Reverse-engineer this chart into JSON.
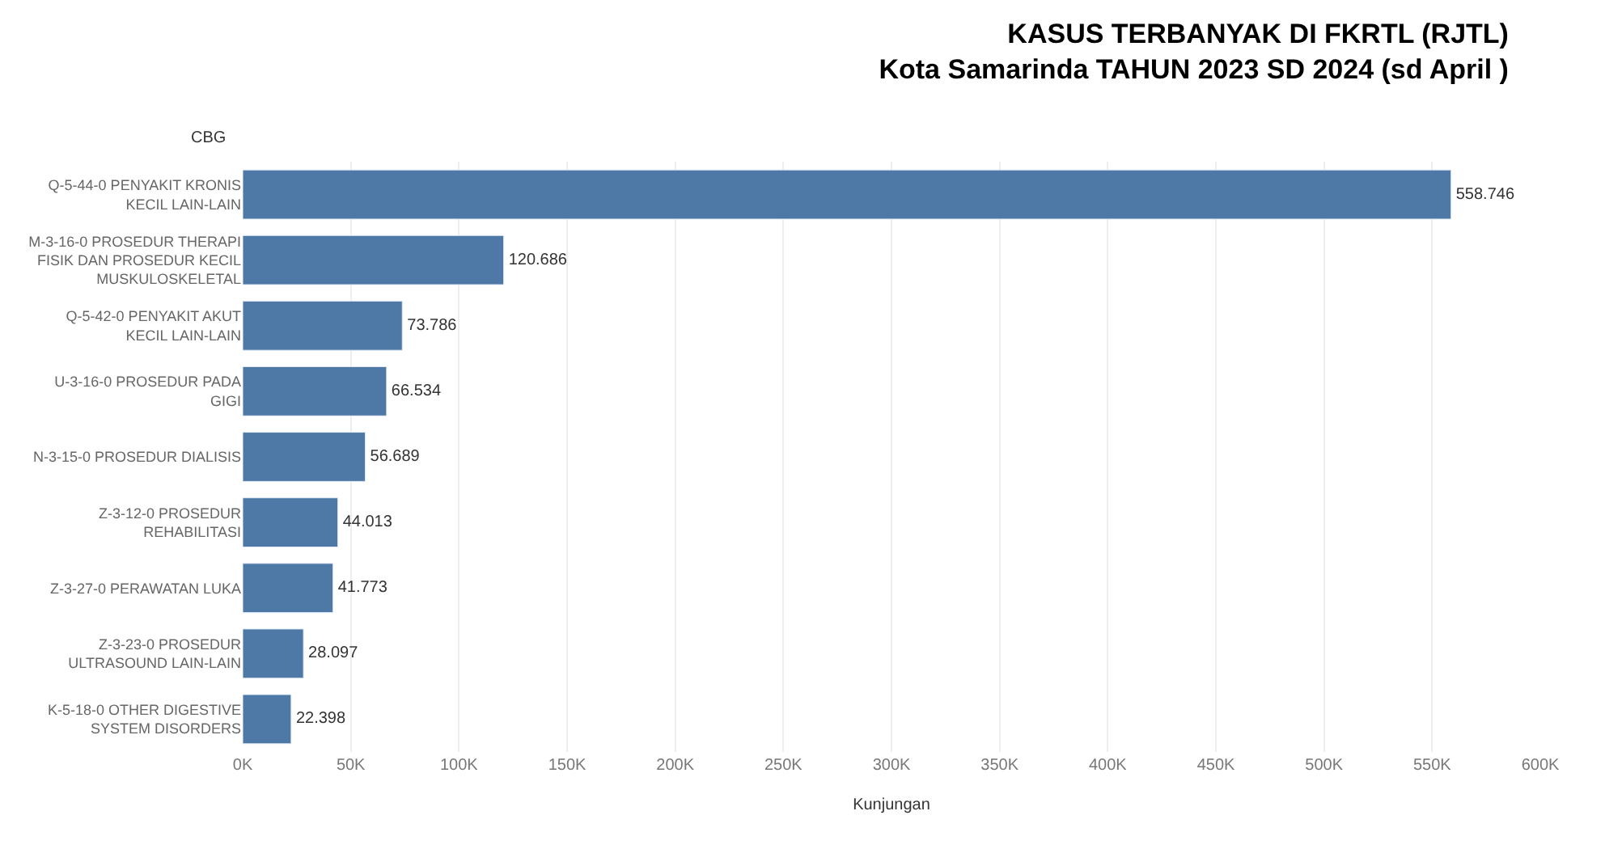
{
  "chart_data": {
    "type": "bar",
    "orientation": "horizontal",
    "title": "KASUS TERBANYAK DI FKRTL (RJTL)",
    "subtitle": "Kota Samarinda TAHUN 2023 SD 2024 (sd April )",
    "ylabel": "CBG",
    "xlabel": "Kunjungan",
    "categories": [
      "Q-5-44-0 PENYAKIT KRONIS KECIL LAIN-LAIN",
      "M-3-16-0 PROSEDUR THERAPI FISIK DAN PROSEDUR KECIL MUSKULOSKELETAL",
      "Q-5-42-0 PENYAKIT AKUT KECIL LAIN-LAIN",
      "U-3-16-0 PROSEDUR PADA GIGI",
      "N-3-15-0 PROSEDUR DIALISIS",
      "Z-3-12-0 PROSEDUR REHABILITASI",
      "Z-3-27-0 PERAWATAN LUKA",
      "Z-3-23-0 PROSEDUR ULTRASOUND LAIN-LAIN",
      "K-5-18-0 OTHER DIGESTIVE SYSTEM DISORDERS"
    ],
    "values": [
      558746,
      120686,
      73786,
      66534,
      56689,
      44013,
      41773,
      28097,
      22398
    ],
    "value_labels": [
      "558.746",
      "120.686",
      "73.786",
      "66.534",
      "56.689",
      "44.013",
      "41.773",
      "28.097",
      "22.398"
    ],
    "color": "#4e79a7",
    "xlim": [
      0,
      600000
    ],
    "xticks": [
      {
        "value": 0,
        "label": "0K"
      },
      {
        "value": 50000,
        "label": "50K"
      },
      {
        "value": 100000,
        "label": "100K"
      },
      {
        "value": 150000,
        "label": "150K"
      },
      {
        "value": 200000,
        "label": "200K"
      },
      {
        "value": 250000,
        "label": "250K"
      },
      {
        "value": 300000,
        "label": "300K"
      },
      {
        "value": 350000,
        "label": "350K"
      },
      {
        "value": 400000,
        "label": "400K"
      },
      {
        "value": 450000,
        "label": "450K"
      },
      {
        "value": 500000,
        "label": "500K"
      },
      {
        "value": 550000,
        "label": "550K"
      },
      {
        "value": 600000,
        "label": "600K"
      }
    ],
    "grid": "x",
    "legend": false
  }
}
